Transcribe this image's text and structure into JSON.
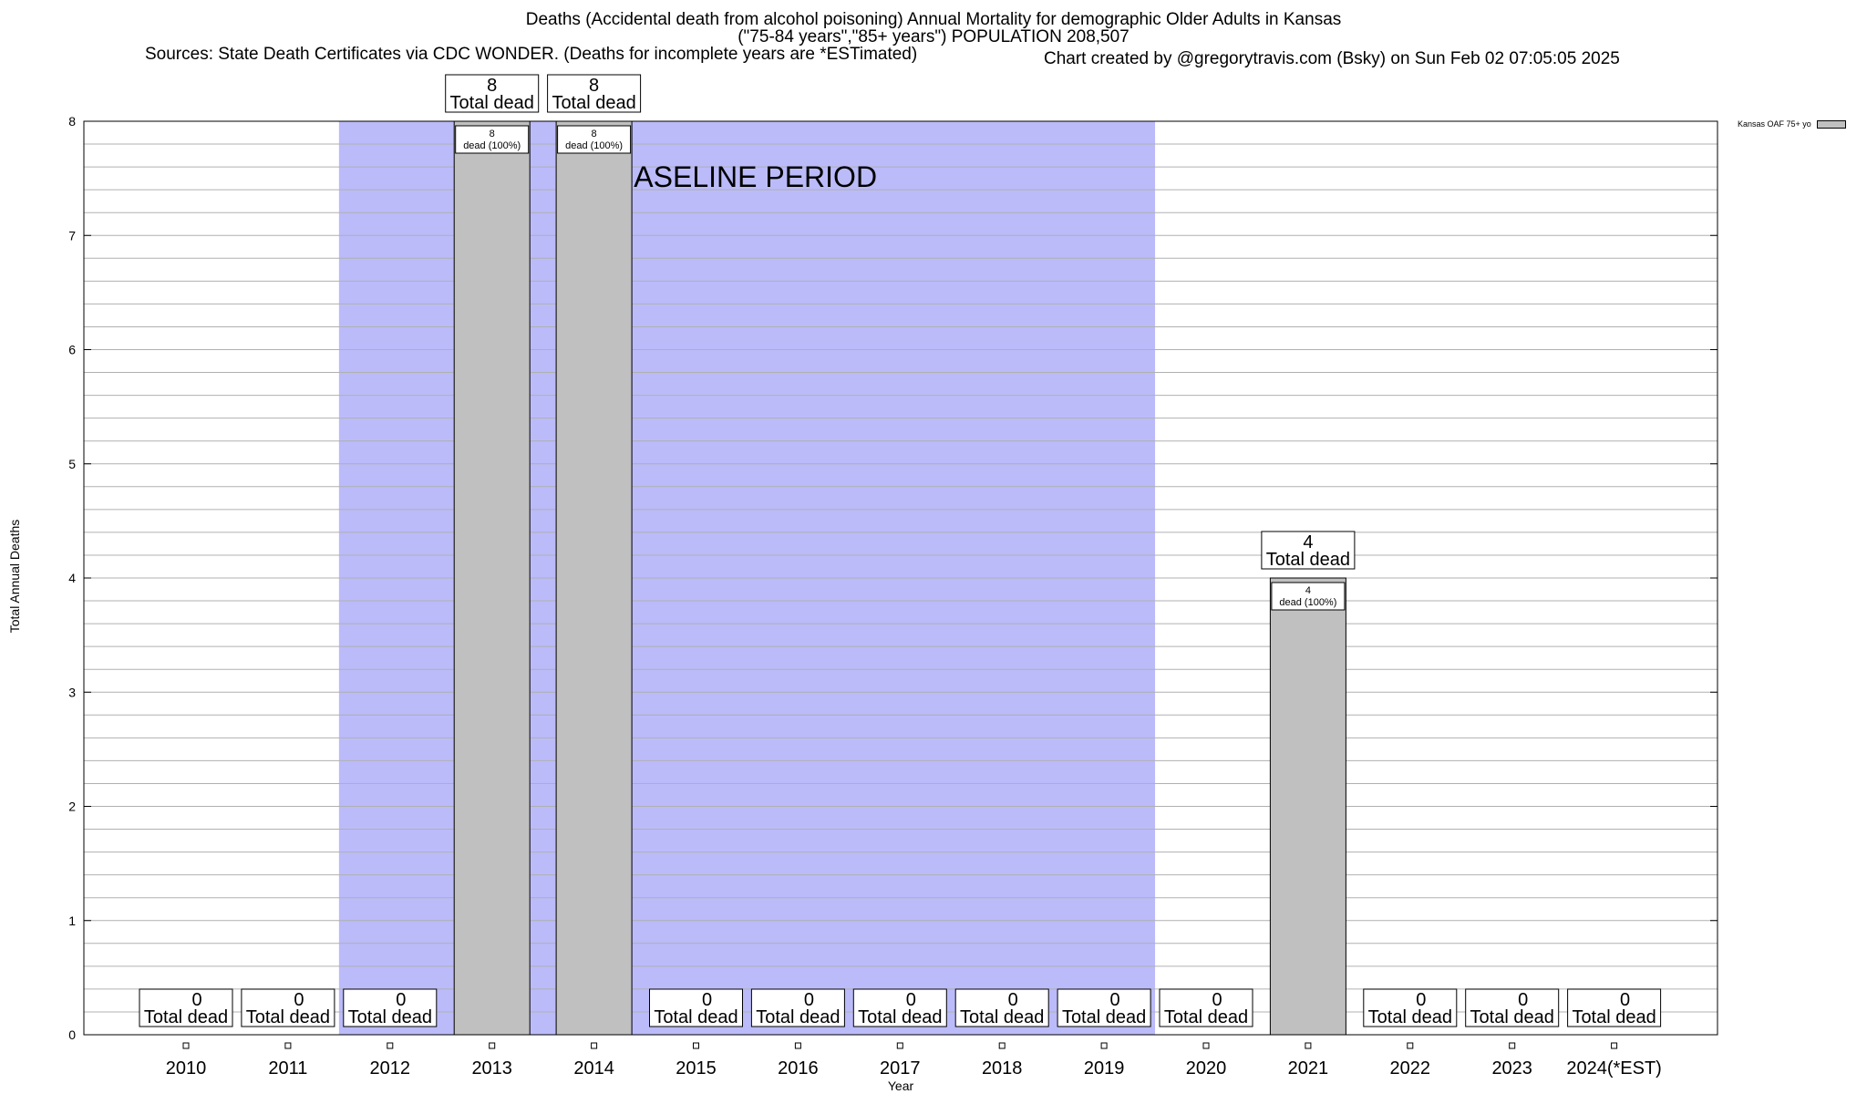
{
  "title_lines": [
    "Deaths (Accidental death from alcohol poisoning) Annual Mortality for demographic Older Adults in Kansas",
    "(\"75-84 years\",\"85+ years\") POPULATION 208,507",
    "Sources: State Death Certificates via CDC WONDER. (Deaths for incomplete years are *ESTimated)"
  ],
  "credit": "Chart created by @gregorytravis.com (Bsky) on Sun Feb 02 07:05:05 2025",
  "legend_label": "Kansas OAF 75+ yo",
  "colors": {
    "bar": "#c0c0c0",
    "baseline": "#bbbbfa",
    "grid": "#b0b0b0"
  },
  "chart_data": {
    "type": "bar",
    "title": "Deaths (Accidental death from alcohol poisoning) Annual Mortality for demographic Older Adults in Kansas",
    "xlabel": "Year",
    "ylabel": "Total Annual Deaths",
    "ylim": [
      0,
      8
    ],
    "yticks": [
      "0",
      "1",
      "2",
      "3",
      "4",
      "5",
      "6",
      "7",
      "8"
    ],
    "grid": true,
    "legend_position": "top-right",
    "categories": [
      "2010",
      "2011",
      "2012",
      "2013",
      "2014",
      "2015",
      "2016",
      "2017",
      "2018",
      "2019",
      "2020",
      "2021",
      "2022",
      "2023",
      "2024(*EST)"
    ],
    "series": [
      {
        "name": "Kansas OAF 75+ yo",
        "values": [
          0,
          0,
          0,
          8,
          8,
          0,
          0,
          0,
          0,
          0,
          0,
          4,
          0,
          0,
          0
        ]
      }
    ],
    "total_label": "Total dead",
    "bar_label_suffix": "dead (100%)",
    "baseline_period": {
      "label": "BASELINE PERIOD",
      "start": "2012",
      "end": "2019"
    }
  }
}
